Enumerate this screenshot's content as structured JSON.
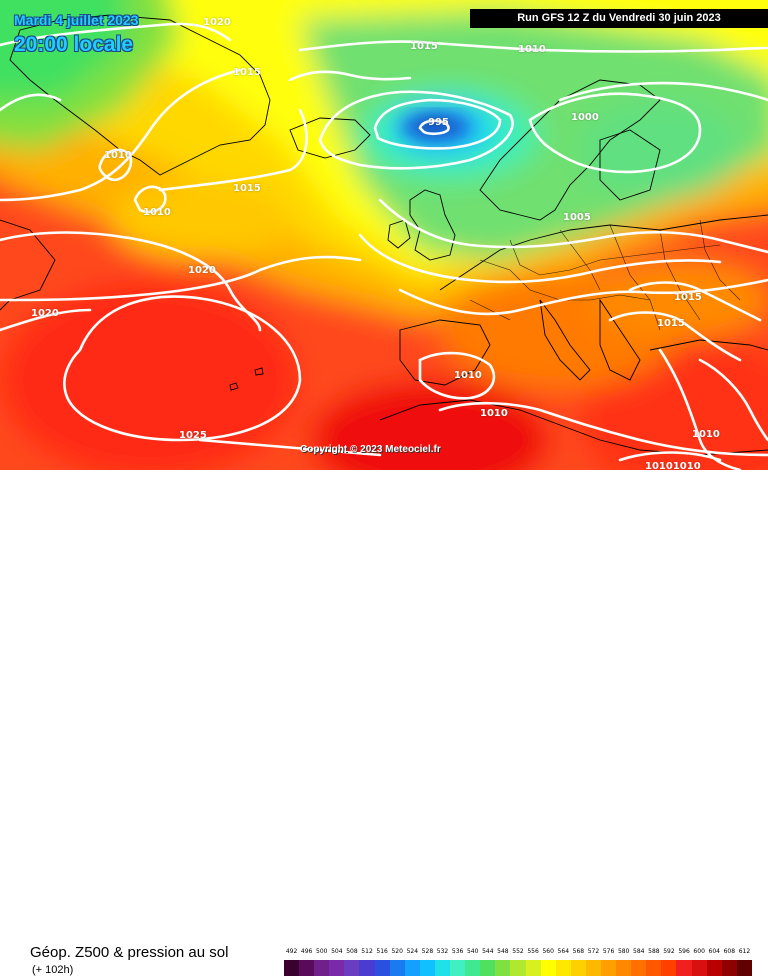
{
  "header": {
    "date": "Mardi 4 juillet 2023",
    "time": "20:00 locale",
    "run": "Run GFS 12 Z du Vendredi 30 juin 2023"
  },
  "isobars": [
    "1020",
    "1015",
    "1010",
    "1010",
    "1015",
    "1020",
    "1020",
    "1025",
    "995",
    "1000",
    "1005",
    "1015",
    "1015",
    "1010",
    "1010",
    "1010",
    "10101010",
    "1010"
  ],
  "copyright": "Copyright © 2023 Meteociel.fr",
  "footer": {
    "title": "Géop. Z500 & pression au sol",
    "subtitle": "(+ 102h)"
  },
  "legend": {
    "labels": [
      "492",
      "496",
      "500",
      "504",
      "508",
      "512",
      "516",
      "520",
      "524",
      "528",
      "532",
      "536",
      "540",
      "544",
      "548",
      "552",
      "556",
      "560",
      "564",
      "568",
      "572",
      "576",
      "580",
      "584",
      "588",
      "592",
      "596",
      "600",
      "604",
      "608",
      "612"
    ],
    "colors": [
      "#3a0030",
      "#5a0a5a",
      "#70208a",
      "#7a2aa8",
      "#6a3cc0",
      "#4a3cd0",
      "#2a50e0",
      "#1a7af0",
      "#14a0ff",
      "#10c0ff",
      "#20e0e8",
      "#40f0c0",
      "#40e890",
      "#50e060",
      "#80e040",
      "#b0e830",
      "#d8f020",
      "#ffff00",
      "#ffe800",
      "#ffd000",
      "#ffb800",
      "#ffa000",
      "#ff8800",
      "#ff7000",
      "#ff5800",
      "#ff4000",
      "#f02020",
      "#d81010",
      "#b80000",
      "#900000",
      "#600000"
    ]
  },
  "colors": {
    "low_center": "#3aa0e8",
    "high_red": "#ff3a20",
    "land_lines": "#000000",
    "isobar": "#ffffff"
  }
}
